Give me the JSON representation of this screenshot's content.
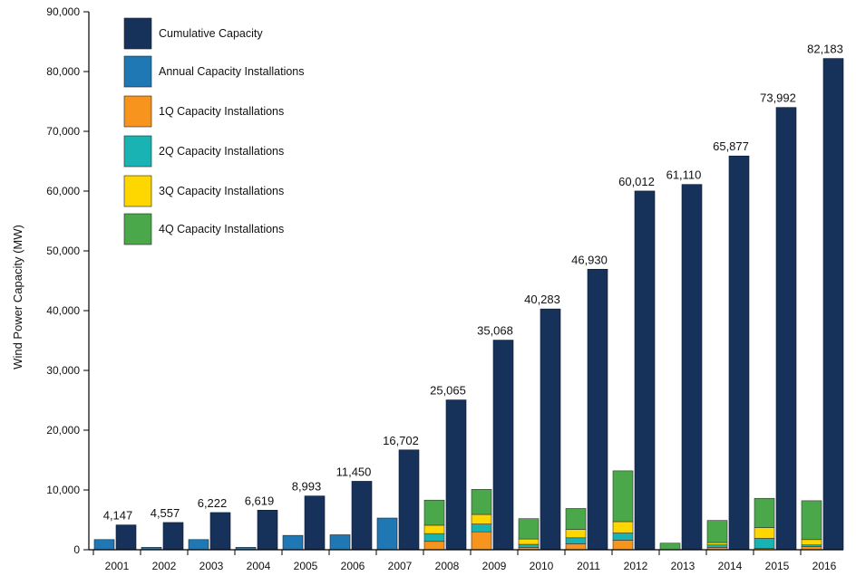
{
  "chart_data": {
    "type": "bar",
    "title": "",
    "ylabel": "Wind Power Capacity (MW)",
    "xlabel": "",
    "ylim": [
      0,
      90000
    ],
    "yticks": [
      "0",
      "10,000",
      "20,000",
      "30,000",
      "40,000",
      "50,000",
      "60,000",
      "70,000",
      "80,000",
      "90,000"
    ],
    "ytick_values": [
      0,
      10000,
      20000,
      30000,
      40000,
      50000,
      60000,
      70000,
      80000,
      90000
    ],
    "grid": false,
    "legend_position": "top-left",
    "categories": [
      "2001",
      "2002",
      "2003",
      "2004",
      "2005",
      "2006",
      "2007",
      "2008",
      "2009",
      "2010",
      "2011",
      "2012",
      "2013",
      "2014",
      "2015",
      "2016"
    ],
    "cumulative": {
      "name": "Cumulative Capacity",
      "color": "#17325a",
      "values": [
        4147,
        4557,
        6222,
        6619,
        8993,
        11450,
        16702,
        25065,
        35068,
        40283,
        46930,
        60012,
        61110,
        65877,
        73992,
        82183
      ],
      "labels": [
        "4,147",
        "4,557",
        "6,222",
        "6,619",
        "8,993",
        "11,450",
        "16,702",
        "25,065",
        "35,068",
        "40,283",
        "46,930",
        "60,012",
        "61,110",
        "65,877",
        "73,992",
        "82,183"
      ]
    },
    "annual": {
      "name": "Annual Capacity Installations",
      "color": "#1f78b4",
      "values": [
        1700,
        400,
        1700,
        400,
        2400,
        2500,
        5300,
        null,
        null,
        null,
        null,
        null,
        null,
        null,
        null,
        null
      ]
    },
    "quarterly": [
      {
        "name": "1Q Capacity Installations",
        "color": "#f7941d",
        "values": [
          null,
          null,
          null,
          null,
          null,
          null,
          null,
          1400,
          3000,
          400,
          1000,
          1600,
          0,
          400,
          200,
          500
        ]
      },
      {
        "name": "2Q Capacity Installations",
        "color": "#1ab3b3",
        "values": [
          null,
          null,
          null,
          null,
          null,
          null,
          null,
          1300,
          1300,
          500,
          1000,
          1200,
          0,
          400,
          1700,
          300
        ]
      },
      {
        "name": "3Q Capacity Installations",
        "color": "#ffd700",
        "values": [
          null,
          null,
          null,
          null,
          null,
          null,
          null,
          1400,
          1600,
          900,
          1400,
          1900,
          0,
          400,
          1800,
          900
        ]
      },
      {
        "name": "4Q Capacity Installations",
        "color": "#4aa84a",
        "values": [
          null,
          null,
          null,
          null,
          null,
          null,
          null,
          4200,
          4200,
          3400,
          3500,
          8500,
          1100,
          3700,
          4900,
          6500
        ]
      }
    ]
  }
}
